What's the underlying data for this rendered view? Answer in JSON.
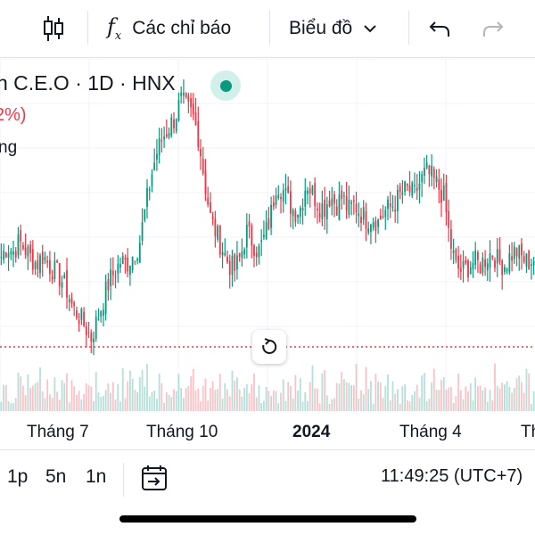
{
  "toolbar": {
    "indicators_label": "Các chỉ báo",
    "chart_type_label": "Biểu đồ"
  },
  "legend": {
    "title": "n C.E.O · 1D · HNX",
    "change": "2%)",
    "volume_label": "ng"
  },
  "time_axis": {
    "labels": [
      "Tháng 7",
      "Tháng 10",
      "2024",
      "Tháng 4",
      "Th"
    ]
  },
  "bottom": {
    "periods": [
      "1p",
      "5n",
      "1n"
    ],
    "clock": "11:49:25 (UTC+7)"
  },
  "colors": {
    "up": "#089981",
    "down": "#f23645",
    "price_line": "#f23645"
  },
  "chart_data": {
    "type": "candlestick",
    "symbol": "C.E.O",
    "interval": "1D",
    "exchange": "HNX",
    "x_ticks": [
      "Tháng 7",
      "Tháng 10",
      "2024",
      "Tháng 4"
    ],
    "close_trend": [
      28.5,
      29.2,
      28.8,
      29.5,
      29.0,
      28.4,
      28.0,
      28.6,
      27.9,
      27.5,
      27.0,
      26.2,
      25.0,
      24.5,
      23.8,
      23.0,
      24.2,
      25.5,
      26.8,
      27.5,
      28.2,
      28.0,
      28.6,
      29.2,
      31.5,
      33.8,
      35.5,
      36.5,
      37.2,
      37.8,
      39.0,
      38.5,
      38.0,
      36.5,
      33.5,
      31.0,
      30.0,
      29.0,
      28.0,
      27.6,
      28.5,
      30.2,
      29.5,
      28.8,
      29.8,
      31.2,
      33.5,
      33.0,
      32.2,
      31.5,
      31.8,
      33.5,
      32.8,
      32.0,
      31.8,
      32.6,
      32.0,
      32.5,
      31.6,
      32.0,
      31.5,
      31.0,
      31.2,
      30.8,
      31.5,
      31.8,
      32.2,
      32.8,
      33.0,
      32.6,
      33.5,
      34.2,
      33.8,
      33.2,
      32.5,
      29.5,
      27.8,
      27.5,
      27.8,
      28.2,
      27.9,
      28.4,
      28.8,
      28.2,
      27.9,
      28.5,
      28.9,
      28.4,
      28.1,
      28.3
    ]
  }
}
